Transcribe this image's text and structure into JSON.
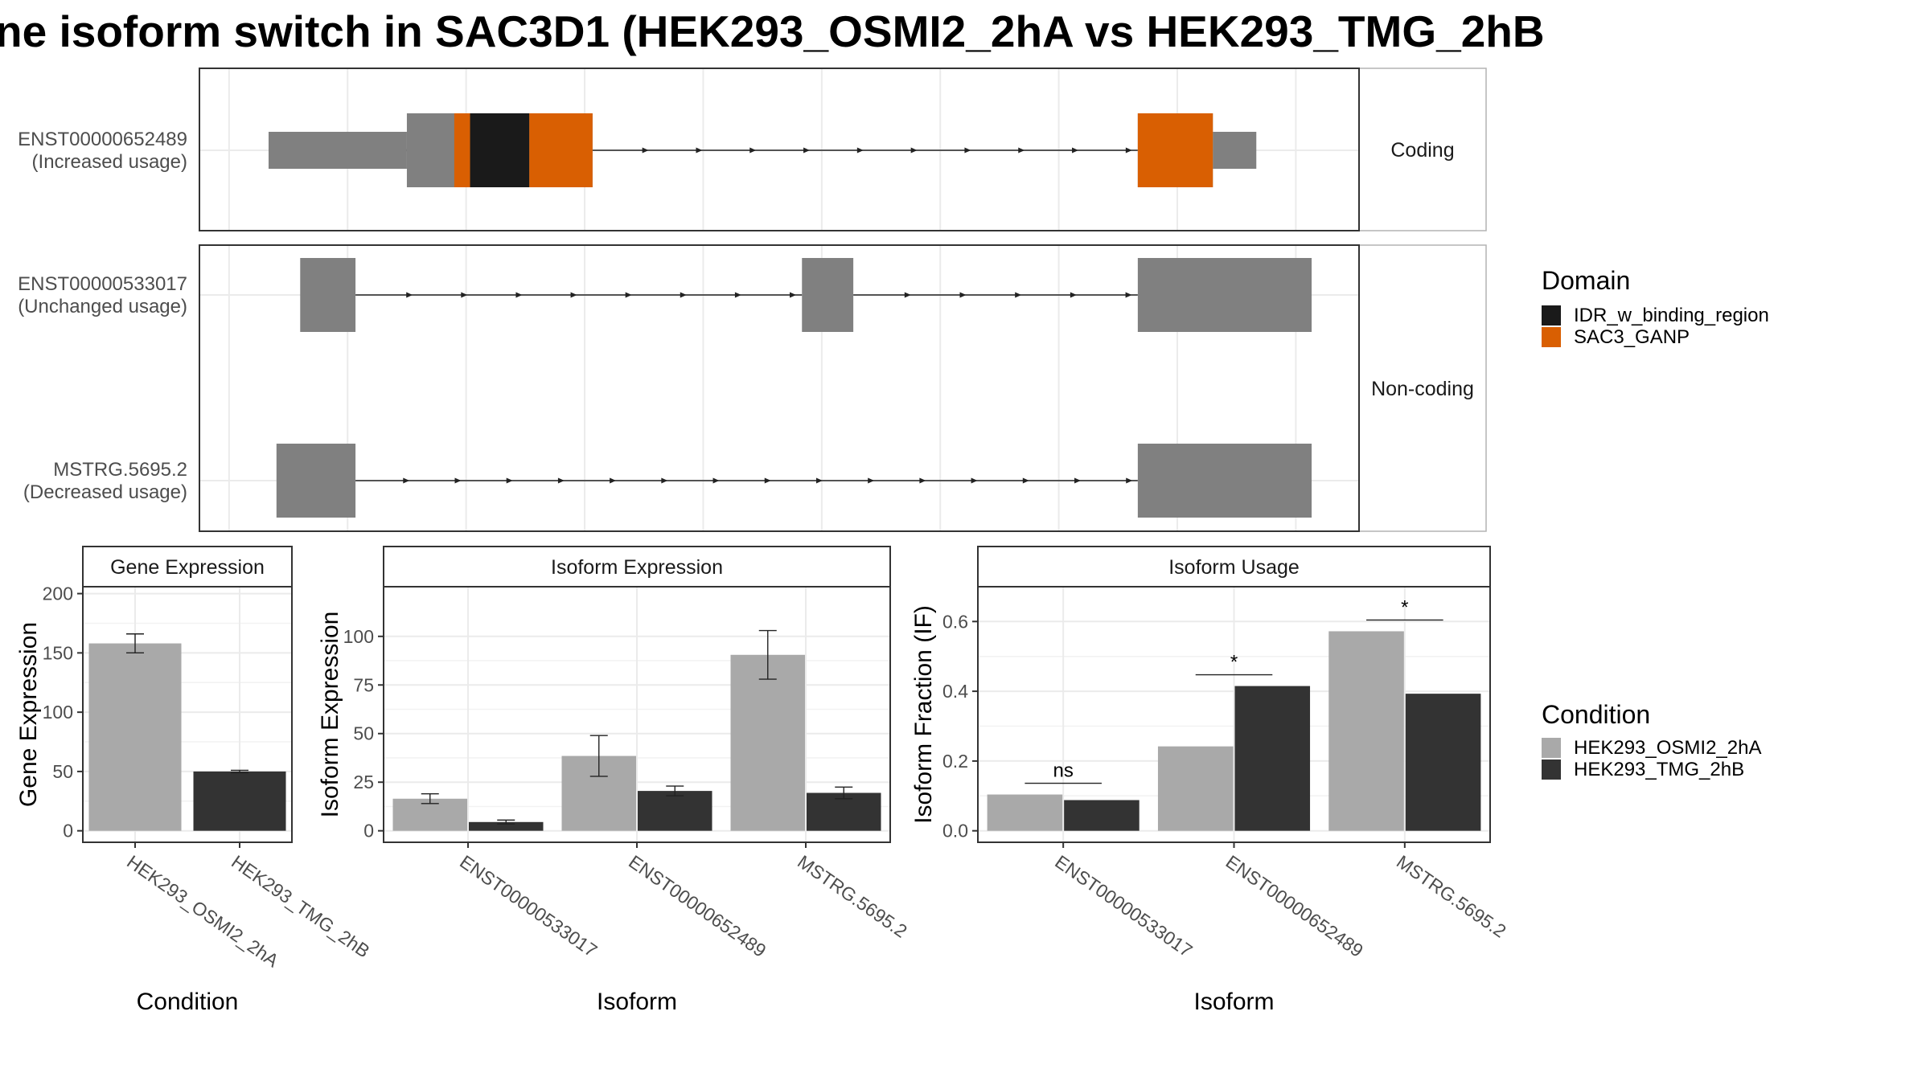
{
  "title": "ne isoform switch in SAC3D1 (HEK293_OSMI2_2hA vs HEK293_TMG_2hB",
  "colors": {
    "IDR_w_binding_region": "#1a1a1a",
    "SAC3_GANP": "#d95f02",
    "exon": "#808080",
    "HEK293_OSMI2_2hA": "#a9a9a9",
    "HEK293_TMG_2hB": "#333333"
  },
  "structure": {
    "coding_label": "Coding",
    "noncoding_label": "Non-coding",
    "transcripts": [
      {
        "name": "ENST00000652489",
        "usage": "(Increased usage)",
        "panel": "coding",
        "exons": [
          [
            -3,
            0.5
          ],
          [
            0.5,
            5.2
          ],
          [
            19.0,
            22.0
          ]
        ],
        "cds": [
          [
            0.5,
            3.6
          ],
          [
            3.6,
            5.2
          ],
          [
            19.0,
            20.9
          ]
        ],
        "domains": [
          [
            1.7,
            2.1,
            "SAC3_GANP"
          ],
          [
            2.1,
            3.6,
            "IDR_w_binding_region"
          ],
          [
            3.6,
            5.2,
            "SAC3_GANP"
          ],
          [
            19.0,
            20.9,
            "SAC3_GANP"
          ]
        ]
      },
      {
        "name": "ENST00000533017",
        "usage": "(Unchanged usage)",
        "panel": "noncoding",
        "exons": [
          [
            -2.2,
            -0.8
          ],
          [
            10.5,
            11.8
          ],
          [
            19.0,
            23.4
          ]
        ]
      },
      {
        "name": "MSTRG.5695.2",
        "usage": "(Decreased usage)",
        "panel": "noncoding",
        "exons": [
          [
            -2.8,
            -0.8
          ],
          [
            19.0,
            23.4
          ]
        ]
      }
    ]
  },
  "legend": {
    "domain_title": "Domain",
    "domains": [
      "IDR_w_binding_region",
      "SAC3_GANP"
    ],
    "condition_title": "Condition",
    "conditions": [
      "HEK293_OSMI2_2hA",
      "HEK293_TMG_2hB"
    ]
  },
  "chart_data": [
    {
      "type": "bar",
      "strip": "Gene Expression",
      "xlabel": "Condition",
      "ylabel": "Gene Expression",
      "ylim": [
        0,
        200
      ],
      "yticks": [
        0,
        50,
        100,
        150,
        200
      ],
      "categories": [
        "HEK293_OSMI2_2hA",
        "HEK293_TMG_2hB"
      ],
      "series": [
        {
          "values": [
            158,
            50
          ],
          "errors": [
            8,
            1
          ]
        }
      ]
    },
    {
      "type": "bar",
      "strip": "Isoform Expression",
      "xlabel": "Isoform",
      "ylabel": "Isoform Expression",
      "ylim": [
        0,
        122
      ],
      "yticks": [
        0,
        25,
        50,
        75,
        100
      ],
      "categories": [
        "ENST00000533017",
        "ENST00000652489",
        "MSTRG.5695.2"
      ],
      "series": [
        {
          "name": "HEK293_OSMI2_2hA",
          "values": [
            16.5,
            38.5,
            90.5
          ],
          "errors": [
            2.5,
            10.5,
            12.5
          ]
        },
        {
          "name": "HEK293_TMG_2hB",
          "values": [
            4.5,
            20.5,
            19.5
          ],
          "errors": [
            1,
            2.5,
            3
          ]
        }
      ]
    },
    {
      "type": "bar",
      "strip": "Isoform Usage",
      "xlabel": "Isoform",
      "ylabel": "Isoform Fraction (IF)",
      "ylim": [
        0,
        0.68
      ],
      "yticks": [
        0.0,
        0.2,
        0.4,
        0.6
      ],
      "categories": [
        "ENST00000533017",
        "ENST00000652489",
        "MSTRG.5695.2"
      ],
      "series": [
        {
          "name": "HEK293_OSMI2_2hA",
          "values": [
            0.104,
            0.242,
            0.572
          ]
        },
        {
          "name": "HEK293_TMG_2hB",
          "values": [
            0.088,
            0.415,
            0.393
          ]
        }
      ],
      "significance": [
        "ns",
        "*",
        "*"
      ]
    }
  ]
}
